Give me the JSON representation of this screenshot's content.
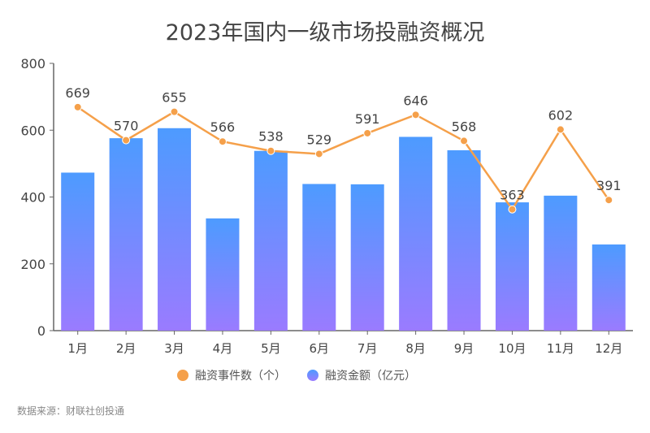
{
  "chart_data": {
    "type": "bar+line",
    "title": "2023年国内一级市场投融资概况",
    "categories": [
      "1月",
      "2月",
      "3月",
      "4月",
      "5月",
      "6月",
      "7月",
      "8月",
      "9月",
      "10月",
      "11月",
      "12月"
    ],
    "series": [
      {
        "name": "融资事件数（个）",
        "type": "line",
        "color": "#f5a04a",
        "values": [
          669,
          570,
          655,
          566,
          538,
          529,
          591,
          646,
          568,
          363,
          602,
          391
        ],
        "data_labels": true
      },
      {
        "name": "融资金额（亿元）",
        "type": "bar",
        "color_top": "#4d9bff",
        "color_bottom": "#9a7bff",
        "values": [
          473,
          576,
          606,
          336,
          538,
          439,
          438,
          580,
          540,
          384,
          404,
          258
        ]
      }
    ],
    "ylim": [
      0,
      800
    ],
    "yticks": [
      0,
      200,
      400,
      600,
      800
    ],
    "grid": false,
    "legend": "bottom"
  },
  "source": "数据来源：财联社创投通"
}
